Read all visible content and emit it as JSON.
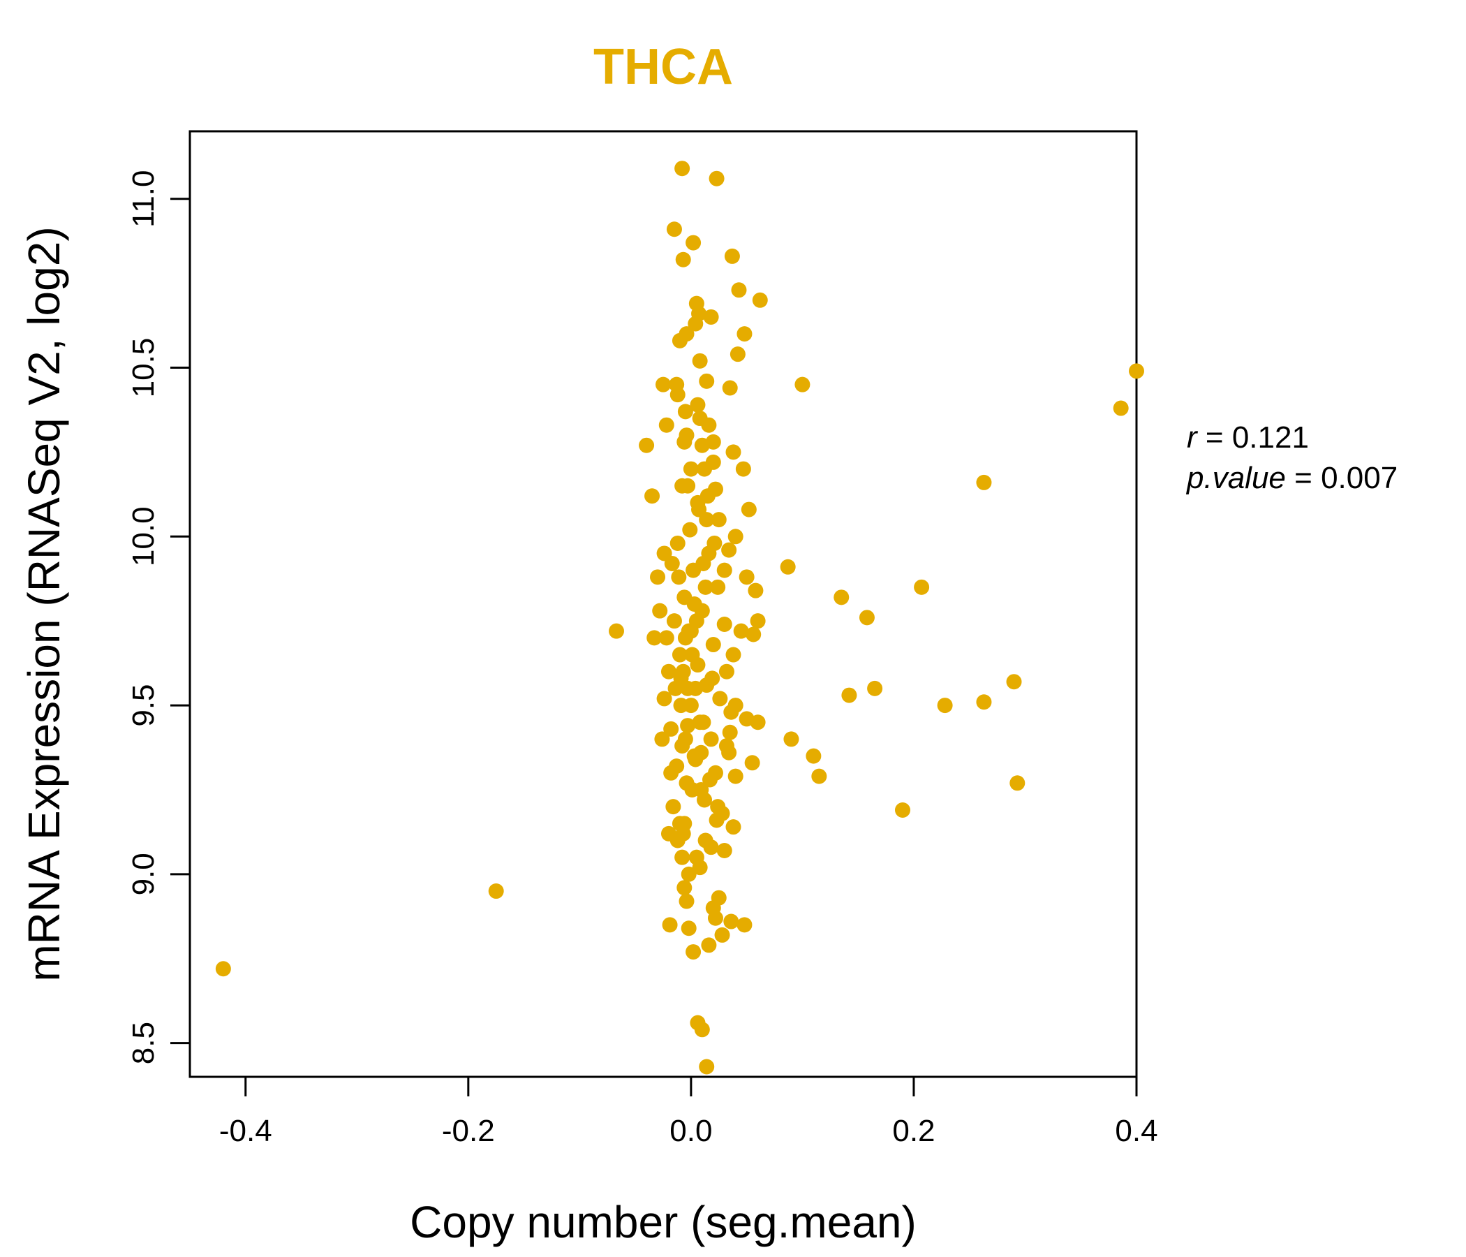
{
  "chart_data": {
    "type": "scatter",
    "title": "THCA",
    "xlabel": "Copy number (seg.mean)",
    "ylabel": "mRNA Expression (RNASeq V2, log2)",
    "xlim": [
      -0.45,
      0.4
    ],
    "ylim": [
      8.4,
      11.2
    ],
    "xticks": [
      -0.4,
      -0.2,
      0.0,
      0.2,
      0.4
    ],
    "xtick_labels": [
      "-0.4",
      "-0.2",
      "0.0",
      "0.2",
      "0.4"
    ],
    "yticks": [
      8.5,
      9.0,
      9.5,
      10.0,
      10.5,
      11.0
    ],
    "ytick_labels": [
      "8.5",
      "9.0",
      "9.5",
      "10.0",
      "10.5",
      "11.0"
    ],
    "grid": false,
    "point_color": "#E5AC00",
    "title_color": "#E5AC00",
    "stats": {
      "r_label": "r",
      "r_value": "0.121",
      "p_label": "p.value",
      "p_value": "0.007"
    },
    "points": [
      [
        -0.42,
        8.72
      ],
      [
        -0.175,
        8.95
      ],
      [
        -0.067,
        9.72
      ],
      [
        -0.04,
        10.27
      ],
      [
        -0.035,
        10.12
      ],
      [
        -0.033,
        9.7
      ],
      [
        -0.03,
        9.88
      ],
      [
        -0.028,
        9.78
      ],
      [
        -0.025,
        10.45
      ],
      [
        -0.024,
        9.95
      ],
      [
        -0.022,
        10.33
      ],
      [
        -0.02,
        9.12
      ],
      [
        -0.019,
        8.85
      ],
      [
        -0.018,
        9.3
      ],
      [
        -0.017,
        9.92
      ],
      [
        -0.015,
        10.91
      ],
      [
        -0.013,
        10.45
      ],
      [
        -0.012,
        10.42
      ],
      [
        -0.01,
        10.58
      ],
      [
        -0.008,
        11.09
      ],
      [
        -0.007,
        10.82
      ],
      [
        -0.006,
        10.28
      ],
      [
        -0.005,
        10.37
      ],
      [
        -0.004,
        10.6
      ],
      [
        -0.003,
        10.15
      ],
      [
        0.002,
        10.87
      ],
      [
        0.004,
        10.63
      ],
      [
        0.005,
        10.69
      ],
      [
        0.006,
        10.39
      ],
      [
        0.007,
        10.66
      ],
      [
        0.008,
        10.52
      ],
      [
        0.01,
        10.27
      ],
      [
        0.012,
        10.2
      ],
      [
        0.014,
        10.46
      ],
      [
        0.016,
        10.33
      ],
      [
        0.018,
        10.65
      ],
      [
        0.02,
        10.28
      ],
      [
        0.022,
        10.14
      ],
      [
        0.023,
        11.06
      ],
      [
        0.025,
        10.05
      ],
      [
        0.035,
        10.44
      ],
      [
        0.037,
        10.83
      ],
      [
        0.038,
        10.25
      ],
      [
        0.04,
        10.0
      ],
      [
        0.042,
        10.54
      ],
      [
        0.043,
        10.73
      ],
      [
        0.047,
        10.2
      ],
      [
        0.048,
        10.6
      ],
      [
        0.05,
        9.88
      ],
      [
        0.052,
        10.08
      ],
      [
        0.056,
        9.71
      ],
      [
        0.058,
        9.84
      ],
      [
        0.06,
        9.75
      ],
      [
        0.062,
        10.7
      ],
      [
        0.06,
        9.45
      ],
      [
        0.055,
        9.33
      ],
      [
        0.05,
        9.46
      ],
      [
        0.048,
        8.85
      ],
      [
        0.04,
        9.5
      ],
      [
        0.04,
        9.29
      ],
      [
        0.038,
        9.14
      ],
      [
        0.036,
        8.86
      ],
      [
        0.035,
        9.42
      ],
      [
        0.034,
        9.36
      ],
      [
        0.045,
        9.72
      ],
      [
        0.03,
        9.07
      ],
      [
        0.028,
        8.82
      ],
      [
        0.025,
        8.93
      ],
      [
        0.022,
        8.87
      ],
      [
        0.02,
        8.9
      ],
      [
        0.016,
        8.79
      ],
      [
        0.014,
        8.43
      ],
      [
        0.01,
        8.54
      ],
      [
        0.006,
        8.56
      ],
      [
        0.002,
        8.77
      ],
      [
        -0.002,
        8.84
      ],
      [
        -0.004,
        8.92
      ],
      [
        -0.006,
        8.96
      ],
      [
        -0.008,
        9.05
      ],
      [
        -0.01,
        9.15
      ],
      [
        0.087,
        9.91
      ],
      [
        0.09,
        9.4
      ],
      [
        0.1,
        10.45
      ],
      [
        0.11,
        9.35
      ],
      [
        0.115,
        9.29
      ],
      [
        0.135,
        9.82
      ],
      [
        0.142,
        9.53
      ],
      [
        0.158,
        9.76
      ],
      [
        0.165,
        9.55
      ],
      [
        0.19,
        9.19
      ],
      [
        0.207,
        9.85
      ],
      [
        0.228,
        9.5
      ],
      [
        0.263,
        10.16
      ],
      [
        0.263,
        9.51
      ],
      [
        0.29,
        9.57
      ],
      [
        0.293,
        9.27
      ],
      [
        0.386,
        10.38
      ],
      [
        0.4,
        10.49
      ],
      [
        -0.02,
        9.6
      ],
      [
        -0.018,
        9.43
      ],
      [
        -0.016,
        9.2
      ],
      [
        -0.014,
        9.55
      ],
      [
        -0.012,
        9.98
      ],
      [
        -0.01,
        9.65
      ],
      [
        -0.008,
        9.38
      ],
      [
        -0.006,
        9.82
      ],
      [
        -0.004,
        9.27
      ],
      [
        -0.002,
        9.72
      ],
      [
        0.0,
        9.5
      ],
      [
        0.002,
        9.9
      ],
      [
        0.004,
        9.34
      ],
      [
        0.006,
        9.62
      ],
      [
        0.008,
        9.45
      ],
      [
        0.01,
        9.78
      ],
      [
        0.012,
        9.22
      ],
      [
        0.014,
        9.56
      ],
      [
        0.016,
        9.95
      ],
      [
        0.018,
        9.4
      ],
      [
        0.02,
        9.68
      ],
      [
        0.022,
        9.3
      ],
      [
        0.024,
        9.85
      ],
      [
        0.026,
        9.52
      ],
      [
        0.028,
        9.18
      ],
      [
        0.03,
        9.74
      ],
      [
        0.032,
        9.6
      ],
      [
        0.034,
        9.96
      ],
      [
        0.036,
        9.48
      ],
      [
        0.038,
        9.65
      ],
      [
        -0.015,
        9.75
      ],
      [
        -0.013,
        9.32
      ],
      [
        -0.011,
        9.88
      ],
      [
        -0.009,
        9.58
      ],
      [
        -0.007,
        9.12
      ],
      [
        -0.005,
        9.7
      ],
      [
        -0.003,
        9.44
      ],
      [
        -0.001,
        10.02
      ],
      [
        0.001,
        9.25
      ],
      [
        0.003,
        9.8
      ],
      [
        0.005,
        9.05
      ],
      [
        0.007,
        10.08
      ],
      [
        0.009,
        9.36
      ],
      [
        0.011,
        9.92
      ],
      [
        0.013,
        9.1
      ],
      [
        0.015,
        10.12
      ],
      [
        0.017,
        9.28
      ],
      [
        0.019,
        9.58
      ],
      [
        0.021,
        9.98
      ],
      [
        0.023,
        9.16
      ],
      [
        -0.009,
        9.5
      ],
      [
        -0.007,
        9.6
      ],
      [
        -0.005,
        9.4
      ],
      [
        -0.003,
        9.55
      ],
      [
        0.001,
        9.65
      ],
      [
        0.003,
        9.35
      ],
      [
        0.005,
        9.75
      ],
      [
        0.009,
        9.25
      ],
      [
        0.011,
        9.45
      ],
      [
        0.013,
        9.85
      ],
      [
        -0.012,
        9.1
      ],
      [
        -0.002,
        9.0
      ],
      [
        0.008,
        9.02
      ],
      [
        0.018,
        9.08
      ],
      [
        0.024,
        9.2
      ],
      [
        -0.022,
        9.7
      ],
      [
        -0.024,
        9.52
      ],
      [
        -0.026,
        9.4
      ],
      [
        0.03,
        9.9
      ],
      [
        0.032,
        9.38
      ],
      [
        -0.008,
        10.15
      ],
      [
        0.0,
        10.2
      ],
      [
        0.006,
        10.1
      ],
      [
        0.014,
        10.05
      ],
      [
        0.02,
        10.22
      ],
      [
        -0.004,
        10.3
      ],
      [
        0.008,
        10.35
      ],
      [
        0.004,
        9.55
      ],
      [
        0.0,
        9.72
      ],
      [
        -0.006,
        9.15
      ]
    ]
  }
}
